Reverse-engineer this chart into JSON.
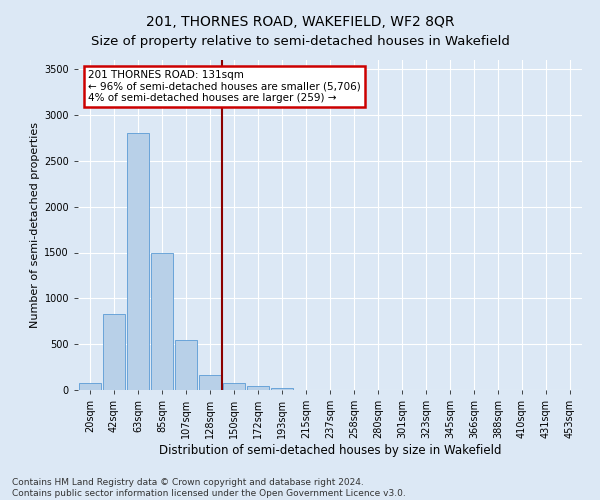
{
  "title": "201, THORNES ROAD, WAKEFIELD, WF2 8QR",
  "subtitle": "Size of property relative to semi-detached houses in Wakefield",
  "xlabel": "Distribution of semi-detached houses by size in Wakefield",
  "ylabel": "Number of semi-detached properties",
  "categories": [
    "20sqm",
    "42sqm",
    "63sqm",
    "85sqm",
    "107sqm",
    "128sqm",
    "150sqm",
    "172sqm",
    "193sqm",
    "215sqm",
    "237sqm",
    "258sqm",
    "280sqm",
    "301sqm",
    "323sqm",
    "345sqm",
    "366sqm",
    "388sqm",
    "410sqm",
    "431sqm",
    "453sqm"
  ],
  "values": [
    75,
    830,
    2800,
    1500,
    550,
    165,
    75,
    45,
    25,
    0,
    0,
    0,
    0,
    0,
    0,
    0,
    0,
    0,
    0,
    0,
    0
  ],
  "bar_color": "#b8d0e8",
  "bar_edge_color": "#5b9bd5",
  "vline_index": 5.5,
  "vline_color": "#8b0000",
  "annotation_text": "201 THORNES ROAD: 131sqm\n← 96% of semi-detached houses are smaller (5,706)\n4% of semi-detached houses are larger (259) →",
  "annotation_box_facecolor": "#ffffff",
  "annotation_box_edgecolor": "#cc0000",
  "ylim": [
    0,
    3600
  ],
  "yticks": [
    0,
    500,
    1000,
    1500,
    2000,
    2500,
    3000,
    3500
  ],
  "background_color": "#dce8f5",
  "plot_bg_color": "#dce8f5",
  "grid_color": "#ffffff",
  "footer_line1": "Contains HM Land Registry data © Crown copyright and database right 2024.",
  "footer_line2": "Contains public sector information licensed under the Open Government Licence v3.0.",
  "title_fontsize": 10,
  "subtitle_fontsize": 9.5,
  "xlabel_fontsize": 8.5,
  "ylabel_fontsize": 8,
  "tick_fontsize": 7,
  "annotation_fontsize": 7.5,
  "footer_fontsize": 6.5
}
